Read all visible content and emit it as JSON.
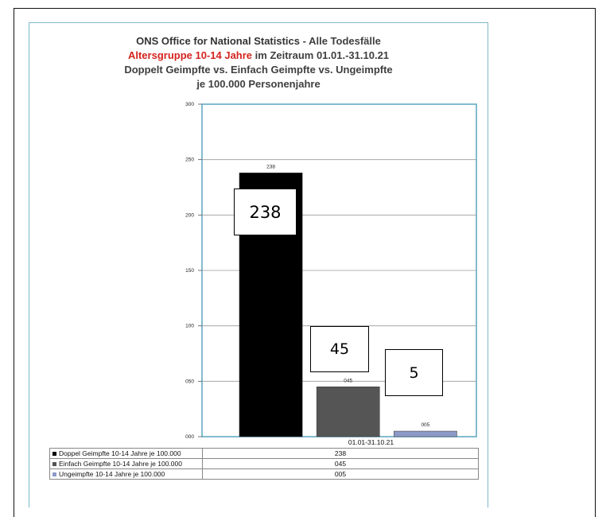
{
  "title": {
    "line1_bold": "ONS Office for National Statistics",
    "line1_sep": " - ",
    "line1_rest": "Alle Todesfälle",
    "line2_red": "Altersgruppe 10-14 Jahre",
    "line2_rest": " im Zeitraum 01.01.-31.10.21",
    "line3": "Doppelt Geimpfte vs. Einfach Geimpfte vs. Ungeimpfte",
    "line4": "je 100.000 Personenjahre"
  },
  "chart_data": {
    "type": "bar",
    "categories": [
      "01.01-31.10.21"
    ],
    "series": [
      {
        "name": "Doppel Geimpfte 10-14 Jahre je 100.000",
        "values": [
          238
        ],
        "label": "238",
        "color": "#000000"
      },
      {
        "name": "Einfach Geimpfte 10-14 Jahre je 100.000",
        "values": [
          45
        ],
        "label": "045",
        "color": "#555555"
      },
      {
        "name": "Ungeimpfte 10-14 Jahre je 100.000",
        "values": [
          5
        ],
        "label": "005",
        "color": "#8b9ac7"
      }
    ],
    "ylim": [
      0,
      300
    ],
    "yticks": [
      0,
      50,
      100,
      150,
      200,
      250,
      300
    ],
    "ytick_labels": [
      "000",
      "050",
      "100",
      "150",
      "200",
      "250",
      "300"
    ],
    "grid": true,
    "legend": "table below chart"
  },
  "table": {
    "rows": [
      {
        "name": "Doppel Geimpfte 10-14 Jahre je 100.000",
        "value": "238"
      },
      {
        "name": "Einfach Geimpfte 10-14 Jahre je 100.000",
        "value": "045"
      },
      {
        "name": "Ungeimpfte 10-14 Jahre je 100.000",
        "value": "005"
      }
    ]
  },
  "callouts": [
    "238",
    "45",
    "5"
  ]
}
